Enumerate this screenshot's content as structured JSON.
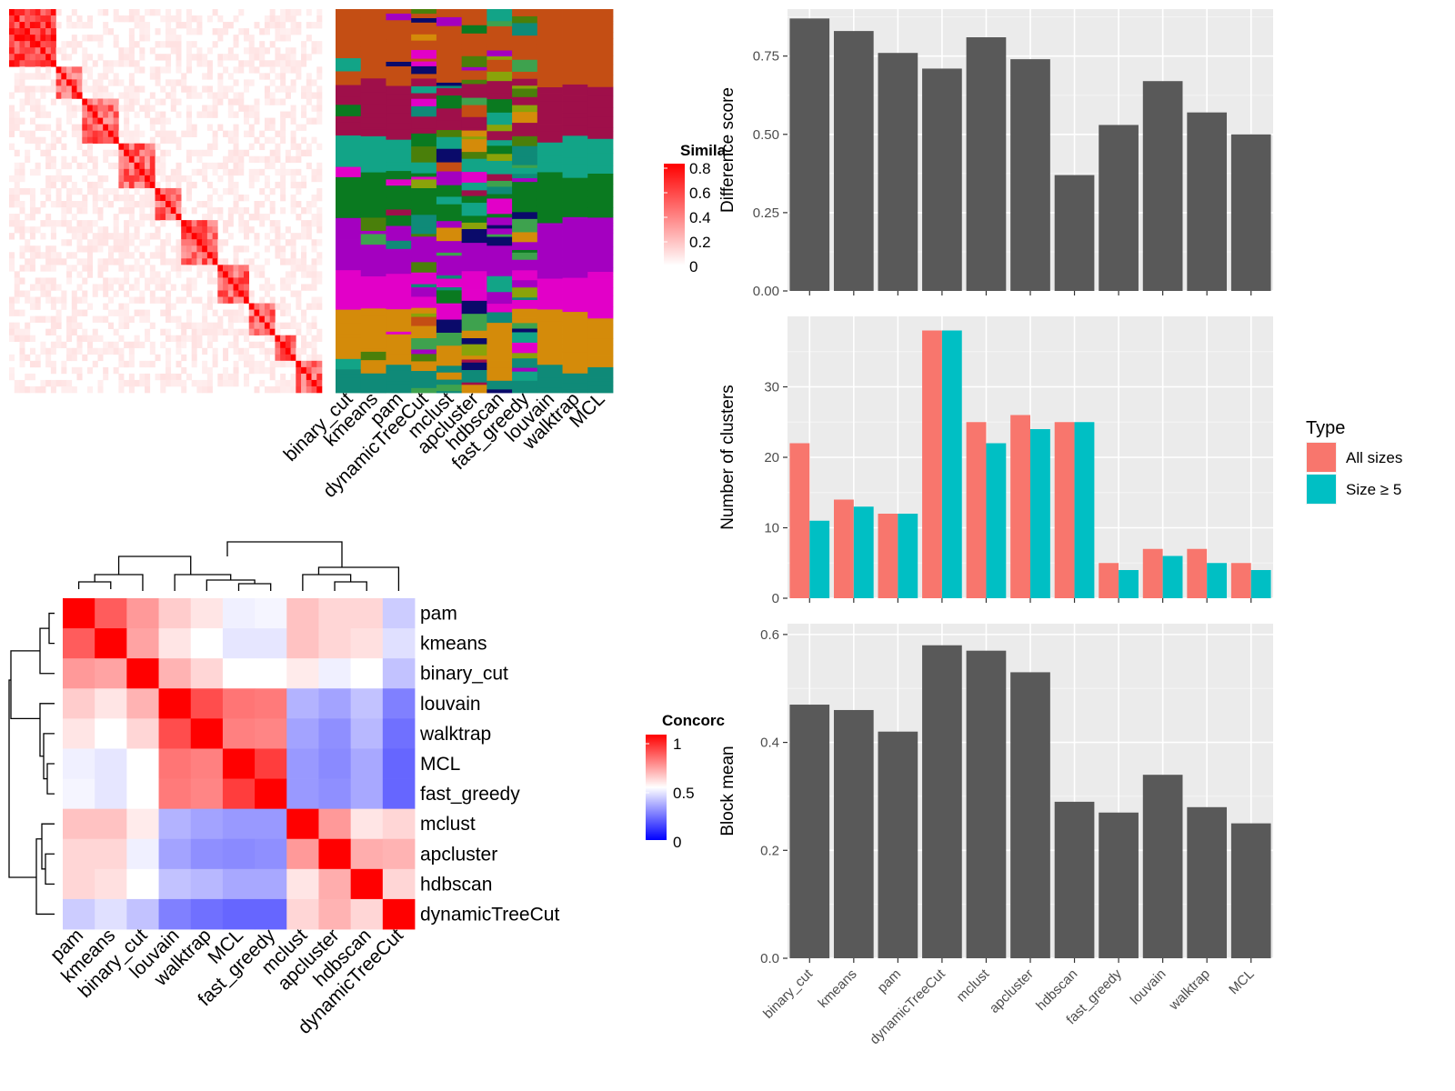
{
  "similarity_heatmap": {
    "legend_title": "Simila",
    "legend_ticks": [
      "0.8",
      "0.6",
      "0.4",
      "0.2",
      "0"
    ],
    "color_low": "#ffffff",
    "color_high": "#ff0000"
  },
  "cluster_assignment_heatmap": {
    "columns": [
      "binary_cut",
      "kmeans",
      "pam",
      "dynamicTreeCut",
      "mclust",
      "apcluster",
      "hdbscan",
      "fast_greedy",
      "louvain",
      "walktrap",
      "MCL"
    ],
    "palette": [
      "#c44e14",
      "#9f0f4a",
      "#12a487",
      "#0a7a20",
      "#a400c0",
      "#e200c8",
      "#0f8a78",
      "#0a0a6a",
      "#3ea24e",
      "#d48b0a",
      "#4a7f0a",
      "#8aa30a"
    ]
  },
  "concordance_heatmap": {
    "legend_title": "Concorc",
    "legend_ticks": [
      "1",
      "0.5",
      "0"
    ],
    "color_low": "#0000ff",
    "color_mid": "#ffffff",
    "color_high": "#ff0000",
    "row_labels": [
      "pam",
      "kmeans",
      "binary_cut",
      "louvain",
      "walktrap",
      "MCL",
      "fast_greedy",
      "mclust",
      "apcluster",
      "hdbscan",
      "dynamicTreeCut"
    ],
    "col_labels": [
      "pam",
      "kmeans",
      "binary_cut",
      "louvain",
      "walktrap",
      "MCL",
      "fast_greedy",
      "mclust",
      "apcluster",
      "hdbscan",
      "dynamicTreeCut"
    ],
    "matrix": [
      [
        1.0,
        0.82,
        0.7,
        0.6,
        0.55,
        0.47,
        0.48,
        0.62,
        0.58,
        0.58,
        0.4
      ],
      [
        0.82,
        1.0,
        0.68,
        0.55,
        0.5,
        0.45,
        0.45,
        0.62,
        0.58,
        0.56,
        0.44
      ],
      [
        0.7,
        0.68,
        1.0,
        0.65,
        0.58,
        0.5,
        0.5,
        0.54,
        0.47,
        0.5,
        0.38
      ],
      [
        0.6,
        0.55,
        0.65,
        1.0,
        0.85,
        0.77,
        0.76,
        0.35,
        0.32,
        0.38,
        0.25
      ],
      [
        0.55,
        0.5,
        0.58,
        0.85,
        1.0,
        0.75,
        0.74,
        0.32,
        0.28,
        0.36,
        0.22
      ],
      [
        0.47,
        0.45,
        0.5,
        0.77,
        0.75,
        1.0,
        0.88,
        0.3,
        0.27,
        0.33,
        0.2
      ],
      [
        0.48,
        0.45,
        0.5,
        0.76,
        0.74,
        0.88,
        1.0,
        0.3,
        0.28,
        0.33,
        0.2
      ],
      [
        0.62,
        0.62,
        0.54,
        0.35,
        0.32,
        0.3,
        0.3,
        1.0,
        0.7,
        0.55,
        0.58
      ],
      [
        0.58,
        0.58,
        0.47,
        0.32,
        0.28,
        0.27,
        0.28,
        0.7,
        1.0,
        0.66,
        0.65
      ],
      [
        0.58,
        0.56,
        0.5,
        0.38,
        0.36,
        0.33,
        0.33,
        0.55,
        0.66,
        1.0,
        0.58
      ],
      [
        0.4,
        0.44,
        0.38,
        0.25,
        0.22,
        0.2,
        0.2,
        0.58,
        0.65,
        0.58,
        1.0
      ]
    ]
  },
  "chart_data": [
    {
      "type": "bar",
      "categories": [
        "binary_cut",
        "kmeans",
        "pam",
        "dynamicTreeCut",
        "mclust",
        "apcluster",
        "hdbscan",
        "fast_greedy",
        "louvain",
        "walktrap",
        "MCL"
      ],
      "values": [
        0.87,
        0.83,
        0.76,
        0.71,
        0.81,
        0.74,
        0.37,
        0.53,
        0.67,
        0.57,
        0.5
      ],
      "ylabel": "Difference score",
      "ylim": [
        0,
        0.9
      ],
      "yticks": [
        "0.00",
        "0.25",
        "0.50",
        "0.75"
      ],
      "bar_color": "#595959"
    },
    {
      "type": "bar",
      "categories": [
        "binary_cut",
        "kmeans",
        "pam",
        "dynamicTreeCut",
        "mclust",
        "apcluster",
        "hdbscan",
        "fast_greedy",
        "louvain",
        "walktrap",
        "MCL"
      ],
      "series": [
        {
          "name": "All sizes",
          "values": [
            22,
            14,
            12,
            38,
            25,
            26,
            25,
            5,
            7,
            7,
            5
          ],
          "color": "#F8766D"
        },
        {
          "name": "Size ≥ 5",
          "values": [
            11,
            13,
            12,
            38,
            22,
            24,
            25,
            4,
            6,
            5,
            4
          ],
          "color": "#00BFC4"
        }
      ],
      "ylabel": "Number of clusters",
      "ylim": [
        0,
        40
      ],
      "yticks": [
        "0",
        "10",
        "20",
        "30"
      ],
      "legend_title": "Type",
      "legend_position": "right"
    },
    {
      "type": "bar",
      "categories": [
        "binary_cut",
        "kmeans",
        "pam",
        "dynamicTreeCut",
        "mclust",
        "apcluster",
        "hdbscan",
        "fast_greedy",
        "louvain",
        "walktrap",
        "MCL"
      ],
      "values": [
        0.47,
        0.46,
        0.42,
        0.58,
        0.57,
        0.53,
        0.29,
        0.27,
        0.34,
        0.28,
        0.25
      ],
      "ylabel": "Block mean",
      "ylim": [
        0,
        0.62
      ],
      "yticks": [
        "0.0",
        "0.2",
        "0.4",
        "0.6"
      ],
      "bar_color": "#595959"
    }
  ]
}
